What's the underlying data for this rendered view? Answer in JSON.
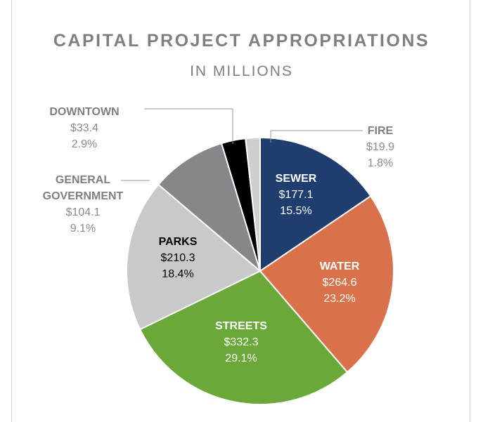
{
  "chart_data": {
    "type": "pie",
    "title": "CAPITAL PROJECT APPROPRIATIONS",
    "subtitle": "IN MILLIONS",
    "categories": [
      "SEWER",
      "WATER",
      "STREETS",
      "PARKS",
      "GENERAL GOVERNMENT",
      "DOWNTOWN",
      "FIRE"
    ],
    "values": [
      177.1,
      264.6,
      332.3,
      210.3,
      104.1,
      33.4,
      19.9
    ],
    "value_labels": [
      "$177.1",
      "$264.6",
      "$332.3",
      "$210.3",
      "$104.1",
      "$33.4",
      "$19.9"
    ],
    "percentages": [
      15.5,
      23.2,
      29.1,
      18.4,
      9.1,
      2.9,
      1.8
    ],
    "percentage_labels": [
      "15.5%",
      "23.2%",
      "29.1%",
      "18.4%",
      "9.1%",
      "2.9%",
      "1.8%"
    ],
    "colors": [
      "#1f3d6e",
      "#d9714a",
      "#6aa939",
      "#c9c9c9",
      "#86878b",
      "#000000",
      "#cfcfcf"
    ]
  }
}
